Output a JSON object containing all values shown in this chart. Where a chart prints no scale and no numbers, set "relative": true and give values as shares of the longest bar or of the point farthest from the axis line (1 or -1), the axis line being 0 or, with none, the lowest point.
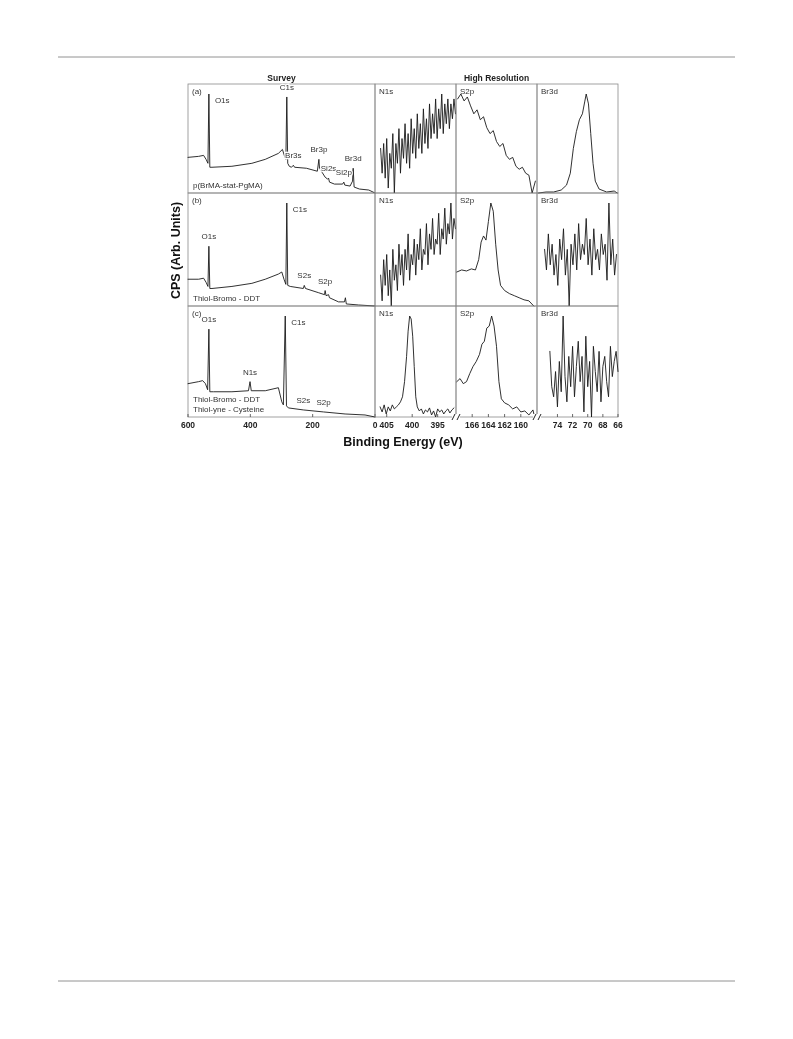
{
  "chart_data": [
    {
      "type": "line",
      "relative": true,
      "title": "Survey",
      "xlim": [
        600,
        0
      ],
      "xticks": [
        600,
        400,
        200,
        0
      ],
      "tick_labels": false,
      "series": [
        {
          "color": "#1a1a1a",
          "x": [
            600,
            566,
            550,
            542,
            536,
            533,
            530,
            523,
            459,
            395,
            352,
            310,
            297,
            290,
            286,
            283,
            280,
            275,
            268,
            262,
            258,
            220,
            185,
            180,
            178,
            170,
            160,
            152,
            149,
            146,
            130,
            104,
            100,
            97,
            80,
            72,
            70,
            67,
            50,
            20,
            0
          ],
          "values": [
            0.36,
            0.37,
            0.38,
            0.34,
            0.3,
            1,
            0.26,
            0.26,
            0.27,
            0.3,
            0.34,
            0.4,
            0.44,
            0.37,
            0.34,
            0.97,
            0.3,
            0.27,
            0.26,
            0.28,
            0.26,
            0.25,
            0.22,
            0.34,
            0.25,
            0.21,
            0.16,
            0.14,
            0.15,
            0.11,
            0.09,
            0.09,
            0.11,
            0.08,
            0.07,
            0.12,
            0.25,
            0.06,
            0.04,
            0.03,
            0
          ]
        }
      ],
      "annotations": [
        "(a)",
        "p(BrMA-stat-PgMA)",
        {
          "text": "O1s",
          "x": 533,
          "y": 1
        },
        {
          "text": "C1s",
          "x": 283,
          "y": 0.97
        },
        {
          "text": "Br3s",
          "x": 262,
          "y": 0.28
        },
        {
          "text": "Br3p",
          "x": 180,
          "y": 0.34
        },
        {
          "text": "Si2s",
          "x": 149,
          "y": 0.15
        },
        {
          "text": "Si2p",
          "x": 100,
          "y": 0.11
        },
        {
          "text": "Br3d",
          "x": 70,
          "y": 0.25
        }
      ]
    },
    {
      "type": "line",
      "relative": true,
      "xlim": [
        407.3,
        391.4
      ],
      "xticks": [
        405,
        400,
        395
      ],
      "tick_labels": false,
      "series": [
        {
          "color": "#1a1a1a",
          "x": [
            406.2,
            405.9,
            405.6,
            405.3,
            405.0,
            404.7,
            404.4,
            404.1,
            403.8,
            403.5,
            403.2,
            402.9,
            402.6,
            402.3,
            402.0,
            401.7,
            401.4,
            401.1,
            400.8,
            400.5,
            400.2,
            399.9,
            399.6,
            399.3,
            399.0,
            398.7,
            398.4,
            398.1,
            397.8,
            397.5,
            397.2,
            396.9,
            396.6,
            396.3,
            396.0,
            395.7,
            395.4,
            395.1,
            394.8,
            394.5,
            394.2,
            393.9,
            393.6,
            393.3,
            393.0,
            392.7,
            392.4,
            392.1,
            391.8,
            391.5
          ],
          "values": [
            0.45,
            0.2,
            0.5,
            0.15,
            0.55,
            0.05,
            0.4,
            0.25,
            0.6,
            0,
            0.5,
            0.3,
            0.65,
            0.2,
            0.55,
            0.35,
            0.7,
            0.3,
            0.6,
            0.25,
            0.75,
            0.4,
            0.65,
            0.35,
            0.8,
            0.45,
            0.7,
            0.4,
            0.85,
            0.5,
            0.75,
            0.45,
            0.9,
            0.55,
            0.8,
            0.6,
            0.95,
            0.55,
            0.85,
            0.65,
            1,
            0.6,
            0.9,
            0.7,
            0.95,
            0.65,
            0.9,
            0.75,
            0.95,
            0.8
          ]
        }
      ],
      "annotations": [
        "N1s"
      ]
    },
    {
      "type": "line",
      "relative": true,
      "title": "High Resolution",
      "xlim": [
        168,
        158
      ],
      "xticks": [
        166,
        164,
        162,
        160
      ],
      "tick_labels": false,
      "series": [
        {
          "color": "#1a1a1a",
          "x": [
            167.8,
            167.4,
            167.0,
            166.6,
            166.2,
            165.8,
            165.4,
            165.0,
            164.6,
            164.2,
            163.8,
            163.4,
            163.0,
            162.6,
            162.2,
            161.8,
            161.4,
            161.0,
            160.6,
            160.2,
            159.8,
            159.4,
            159.0,
            158.6,
            158.2
          ],
          "values": [
            0.95,
            1,
            0.93,
            0.97,
            0.88,
            0.8,
            0.84,
            0.74,
            0.77,
            0.66,
            0.6,
            0.63,
            0.52,
            0.47,
            0.5,
            0.38,
            0.34,
            0.36,
            0.27,
            0.24,
            0.26,
            0.2,
            0.18,
            0,
            0.12
          ]
        }
      ],
      "annotations": [
        "S2p"
      ]
    },
    {
      "type": "line",
      "relative": true,
      "xlim": [
        76.7,
        66
      ],
      "xticks": [
        74,
        72,
        70,
        68,
        66
      ],
      "tick_labels": false,
      "series": [
        {
          "color": "#1a1a1a",
          "x": [
            76.5,
            75.5,
            74.5,
            73.5,
            72.8,
            72.3,
            71.9,
            71.5,
            71.1,
            70.7,
            70.4,
            70.2,
            69.9,
            69.6,
            69.3,
            69.0,
            68.5,
            67.5,
            66.5,
            66.1
          ],
          "values": [
            0,
            0.01,
            0.01,
            0.03,
            0.08,
            0.2,
            0.45,
            0.62,
            0.74,
            0.8,
            0.92,
            1,
            0.9,
            0.6,
            0.3,
            0.12,
            0.04,
            0.01,
            0.02,
            0
          ]
        }
      ],
      "annotations": [
        "Br3d"
      ]
    },
    {
      "type": "line",
      "relative": true,
      "ylabel": "CPS (Arb. Units)",
      "xlim": [
        600,
        0
      ],
      "xticks": [
        600,
        400,
        200,
        0
      ],
      "tick_labels": false,
      "series": [
        {
          "color": "#1a1a1a",
          "x": [
            600,
            566,
            550,
            542,
            536,
            533,
            530,
            523,
            459,
            395,
            352,
            310,
            299,
            292,
            286,
            283,
            280,
            272,
            230,
            227,
            223,
            182,
            162,
            160,
            157,
            149,
            146,
            117,
            98,
            95,
            92,
            53,
            0
          ],
          "values": [
            0.26,
            0.26,
            0.27,
            0.23,
            0.19,
            0.58,
            0.17,
            0.17,
            0.19,
            0.22,
            0.26,
            0.31,
            0.33,
            0.26,
            0.21,
            1,
            0.2,
            0.19,
            0.17,
            0.2,
            0.17,
            0.13,
            0.11,
            0.15,
            0.1,
            0.11,
            0.08,
            0.04,
            0.04,
            0.08,
            0.02,
            0.01,
            0
          ]
        }
      ],
      "annotations": [
        "(b)",
        "Thiol-Bromo - DDT",
        {
          "text": "O1s",
          "x": 533,
          "y": 0.58
        },
        {
          "text": "C1s",
          "x": 283,
          "y": 1
        },
        {
          "text": "S2s",
          "x": 227,
          "y": 0.2
        },
        {
          "text": "S2p",
          "x": 160,
          "y": 0.15
        }
      ]
    },
    {
      "type": "line",
      "relative": true,
      "xlim": [
        407.3,
        391.4
      ],
      "xticks": [
        405,
        400,
        395
      ],
      "tick_labels": false,
      "series": [
        {
          "color": "#1a1a1a",
          "x": [
            406.2,
            405.9,
            405.6,
            405.3,
            405.0,
            404.7,
            404.4,
            404.1,
            403.8,
            403.5,
            403.2,
            402.9,
            402.6,
            402.3,
            402.0,
            401.7,
            401.4,
            401.1,
            400.8,
            400.5,
            400.2,
            399.9,
            399.6,
            399.3,
            399.0,
            398.7,
            398.4,
            398.1,
            397.8,
            397.5,
            397.2,
            396.9,
            396.6,
            396.3,
            396.0,
            395.7,
            395.4,
            395.1,
            394.8,
            394.5,
            394.2,
            393.9,
            393.6,
            393.3,
            393.0,
            392.7,
            392.4,
            392.1,
            391.8,
            391.5
          ],
          "values": [
            0.3,
            0.05,
            0.45,
            0.2,
            0.5,
            0.1,
            0.35,
            0,
            0.55,
            0.25,
            0.4,
            0.15,
            0.6,
            0.3,
            0.5,
            0.2,
            0.55,
            0.35,
            0.7,
            0.25,
            0.5,
            0.4,
            0.65,
            0.3,
            0.6,
            0.45,
            0.75,
            0.35,
            0.55,
            0.5,
            0.8,
            0.4,
            0.7,
            0.55,
            0.85,
            0.5,
            0.65,
            0.6,
            0.9,
            0.5,
            0.75,
            0.65,
            0.95,
            0.6,
            0.8,
            0.7,
            1,
            0.65,
            0.85,
            0.75
          ]
        }
      ],
      "annotations": [
        "N1s"
      ]
    },
    {
      "type": "line",
      "relative": true,
      "xlim": [
        168,
        158
      ],
      "xticks": [
        166,
        164,
        162,
        160
      ],
      "tick_labels": false,
      "series": [
        {
          "color": "#1a1a1a",
          "x": [
            167.9,
            167.3,
            166.7,
            166.1,
            165.6,
            165.2,
            164.9,
            164.6,
            164.3,
            164.0,
            163.7,
            163.4,
            163.1,
            162.8,
            162.5,
            162.0,
            161.4,
            160.8,
            160.2,
            159.6,
            159.0,
            158.4
          ],
          "values": [
            0.33,
            0.35,
            0.34,
            0.36,
            0.35,
            0.45,
            0.62,
            0.68,
            0.64,
            0.82,
            1,
            0.92,
            0.6,
            0.35,
            0.2,
            0.15,
            0.12,
            0.1,
            0.08,
            0.06,
            0.05,
            0
          ]
        }
      ],
      "annotations": [
        "S2p"
      ]
    },
    {
      "type": "line",
      "relative": true,
      "xlim": [
        76.7,
        66
      ],
      "xticks": [
        74,
        72,
        70,
        68,
        66
      ],
      "tick_labels": false,
      "series": [
        {
          "color": "#1a1a1a",
          "x": [
            75.7,
            75.45,
            75.2,
            74.95,
            74.7,
            74.45,
            74.2,
            73.95,
            73.7,
            73.45,
            73.2,
            72.95,
            72.7,
            72.45,
            72.2,
            71.95,
            71.7,
            71.45,
            71.2,
            70.95,
            70.7,
            70.45,
            70.2,
            69.95,
            69.7,
            69.45,
            69.2,
            68.95,
            68.7,
            68.45,
            68.2,
            67.95,
            67.7,
            67.45,
            67.2,
            66.95,
            66.7,
            66.45,
            66.2
          ],
          "values": [
            0.55,
            0.35,
            0.7,
            0.4,
            0.6,
            0.3,
            0.5,
            0.2,
            0.65,
            0.45,
            0.75,
            0.3,
            0.55,
            0,
            0.6,
            0.4,
            0.7,
            0.35,
            0.8,
            0.45,
            0.6,
            0.5,
            0.85,
            0.4,
            0.65,
            0.3,
            0.75,
            0.45,
            0.55,
            0.35,
            0.7,
            0.5,
            0.6,
            0.25,
            1,
            0.4,
            0.65,
            0.3,
            0.5
          ]
        }
      ],
      "annotations": [
        "Br3d"
      ]
    },
    {
      "type": "line",
      "relative": true,
      "xlabel": "Binding Energy (eV)",
      "xlim": [
        600,
        0
      ],
      "xticks": [
        600,
        400,
        200,
        0
      ],
      "tick_labels": "x",
      "series": [
        {
          "color": "#1a1a1a",
          "x": [
            600,
            566,
            553,
            544,
            537,
            533,
            530,
            518,
            459,
            406,
            401,
            397,
            352,
            310,
            299,
            294,
            288,
            284,
            278,
            230,
            165,
            96,
            32,
            0
          ],
          "values": [
            0.33,
            0.35,
            0.36,
            0.33,
            0.27,
            0.87,
            0.25,
            0.25,
            0.25,
            0.26,
            0.35,
            0.26,
            0.26,
            0.29,
            0.15,
            0.12,
            1,
            0.11,
            0.09,
            0.07,
            0.05,
            0.03,
            0.02,
            0
          ]
        }
      ],
      "annotations": [
        "(c)",
        "Thiol-Bromo - DDT",
        "Thiol-yne - Cysteine",
        {
          "text": "O1s",
          "x": 533,
          "y": 0.87
        },
        {
          "text": "C1s",
          "x": 288,
          "y": 1
        },
        {
          "text": "N1s",
          "x": 401,
          "y": 0.35
        },
        {
          "text": "S2s",
          "x": 230,
          "y": 0.07
        },
        {
          "text": "S2p",
          "x": 165,
          "y": 0.05
        }
      ]
    },
    {
      "type": "line",
      "relative": true,
      "xlim": [
        407.3,
        391.4
      ],
      "xticks": [
        405,
        400,
        395
      ],
      "tick_labels": "x",
      "series": [
        {
          "color": "#1a1a1a",
          "x": [
            406.3,
            405.9,
            405.5,
            405.1,
            404.7,
            404.3,
            403.9,
            403.5,
            403.1,
            402.7,
            402.3,
            401.9,
            401.5,
            401.1,
            400.8,
            400.5,
            400.2,
            399.9,
            399.6,
            399.3,
            399.0,
            398.6,
            398.2,
            397.8,
            397.4,
            397.0,
            396.6,
            396.2,
            395.8,
            395.4,
            395.0,
            394.6,
            394.2,
            393.8,
            393.4,
            393.0,
            392.6,
            392.2,
            391.8
          ],
          "values": [
            0.1,
            0.05,
            0.12,
            0.03,
            0.1,
            0.06,
            0.12,
            0.08,
            0.1,
            0.12,
            0.15,
            0.2,
            0.35,
            0.6,
            0.85,
            1,
            0.97,
            0.8,
            0.5,
            0.2,
            0.1,
            0.06,
            0.08,
            0.03,
            0.07,
            0.05,
            0.09,
            0.02,
            0.06,
            0,
            0.08,
            0.05,
            0.07,
            0.03,
            0.06,
            0.08,
            0.04,
            0.07,
            0.09
          ]
        }
      ],
      "annotations": [
        "N1s"
      ]
    },
    {
      "type": "line",
      "relative": true,
      "xlim": [
        168,
        158
      ],
      "xticks": [
        166,
        164,
        162,
        160
      ],
      "tick_labels": "x",
      "series": [
        {
          "color": "#1a1a1a",
          "x": [
            167.9,
            167.5,
            167.1,
            166.7,
            166.3,
            165.9,
            165.5,
            165.1,
            164.8,
            164.5,
            164.2,
            163.9,
            163.6,
            163.3,
            163.0,
            162.7,
            162.4,
            162.0,
            161.5,
            161.0,
            160.5,
            160.0,
            159.5,
            159.0,
            158.5,
            158.3
          ],
          "values": [
            0.35,
            0.38,
            0.33,
            0.35,
            0.43,
            0.5,
            0.55,
            0.62,
            0.72,
            0.75,
            0.88,
            0.9,
            1,
            0.9,
            0.7,
            0.35,
            0.18,
            0.14,
            0.12,
            0.08,
            0.1,
            0.05,
            0.06,
            0.02,
            0.07,
            0
          ]
        }
      ],
      "annotations": [
        "S2p"
      ]
    },
    {
      "type": "line",
      "relative": true,
      "xlim": [
        76.7,
        66
      ],
      "xticks": [
        74,
        72,
        70,
        68,
        66
      ],
      "tick_labels": "x",
      "series": [
        {
          "color": "#1a1a1a",
          "x": [
            75,
            74.75,
            74.5,
            74.25,
            74,
            73.75,
            73.5,
            73.25,
            73,
            72.75,
            72.5,
            72.25,
            72,
            71.75,
            71.5,
            71.25,
            71,
            70.75,
            70.5,
            70.25,
            70,
            69.75,
            69.5,
            69.25,
            69,
            68.75,
            68.5,
            68.25,
            68,
            67.75,
            67.5,
            67.25,
            67,
            66.75,
            66.5,
            66.25,
            66
          ],
          "values": [
            0.65,
            0.3,
            0.2,
            0.45,
            0.1,
            0.55,
            0.25,
            1,
            0.4,
            0.15,
            0.6,
            0.3,
            0.7,
            0.2,
            0.5,
            0.75,
            0.35,
            0.6,
            0.05,
            0.8,
            0.3,
            0.55,
            0,
            0.7,
            0.45,
            0.25,
            0.65,
            0.15,
            0.5,
            0.6,
            0.35,
            0.2,
            0.7,
            0.4,
            0.55,
            0.65,
            0.45
          ]
        }
      ],
      "annotations": [
        "Br3d"
      ]
    }
  ]
}
